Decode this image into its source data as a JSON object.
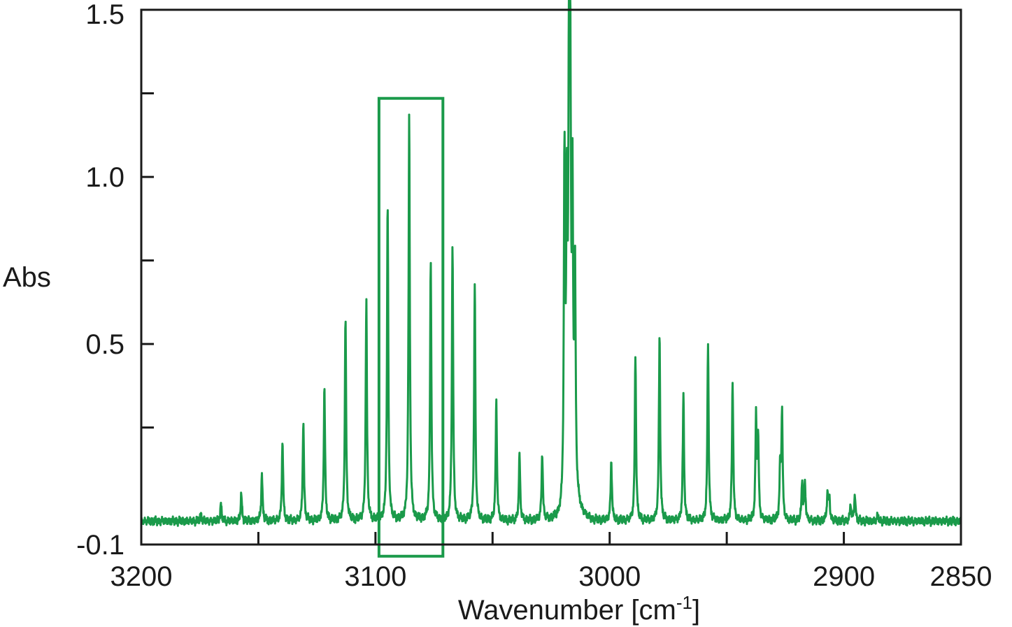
{
  "chart_data": {
    "type": "line",
    "title": "",
    "xlabel": "Wavenumber [cm",
    "xlabel_sup": "-1",
    "xlabel_close": "]",
    "ylabel": "Abs",
    "xlim": [
      3200,
      2850
    ],
    "ylim": [
      -0.1,
      1.5
    ],
    "x_reversed": true,
    "x_ticks": [
      3200,
      3150,
      3100,
      3050,
      3000,
      2950,
      2900,
      2850
    ],
    "x_tick_labels": [
      "3200",
      "",
      "3100",
      "",
      "3000",
      "",
      "2900",
      "2850"
    ],
    "y_ticks": [
      -0.1,
      0.25,
      0.5,
      0.75,
      1.0,
      1.25,
      1.5
    ],
    "y_tick_labels": [
      "-0.1",
      "",
      "0.5",
      "",
      "1.0",
      "",
      "1.5"
    ],
    "grid": false,
    "legend": "none",
    "line_color": "#1a9a4a",
    "baseline": -0.03,
    "series": [
      {
        "peaks": [
          {
            "x": 3174.5,
            "y": -0.01
          },
          {
            "x": 3166.0,
            "y": 0.02
          },
          {
            "x": 3157.3,
            "y": 0.05
          },
          {
            "x": 3148.5,
            "y": 0.11
          },
          {
            "x": 3139.7,
            "y": 0.21
          },
          {
            "x": 3130.8,
            "y": 0.27
          },
          {
            "x": 3121.8,
            "y": 0.37
          },
          {
            "x": 3112.8,
            "y": 0.58
          },
          {
            "x": 3103.9,
            "y": 0.63
          },
          {
            "x": 3094.8,
            "y": 0.92
          },
          {
            "x": 3085.6,
            "y": 1.19
          },
          {
            "x": 3076.4,
            "y": 0.75
          },
          {
            "x": 3067.1,
            "y": 0.8
          },
          {
            "x": 3057.6,
            "y": 0.67
          },
          {
            "x": 3048.4,
            "y": 0.33
          },
          {
            "x": 3038.5,
            "y": 0.17
          },
          {
            "x": 3028.8,
            "y": 0.17
          },
          {
            "x": 3019.3,
            "y": 1.0
          },
          {
            "x": 3018.3,
            "y": 0.8
          },
          {
            "x": 3017.4,
            "y": 1.12
          },
          {
            "x": 3016.8,
            "y": 1.15
          },
          {
            "x": 3015.9,
            "y": 0.76
          },
          {
            "x": 3014.8,
            "y": 0.62
          },
          {
            "x": 2999.3,
            "y": 0.15
          },
          {
            "x": 2989.0,
            "y": 0.47
          },
          {
            "x": 2978.7,
            "y": 0.53
          },
          {
            "x": 2968.5,
            "y": 0.35
          },
          {
            "x": 2958.0,
            "y": 0.5
          },
          {
            "x": 2947.5,
            "y": 0.39
          },
          {
            "x": 2937.5,
            "y": 0.27
          },
          {
            "x": 2936.6,
            "y": 0.21
          },
          {
            "x": 2927.2,
            "y": 0.12
          },
          {
            "x": 2926.4,
            "y": 0.29
          },
          {
            "x": 2917.8,
            "y": 0.09
          },
          {
            "x": 2916.6,
            "y": 0.08
          },
          {
            "x": 2907.0,
            "y": 0.05
          },
          {
            "x": 2906.2,
            "y": 0.04
          },
          {
            "x": 2897.1,
            "y": 0.02
          },
          {
            "x": 2895.3,
            "y": 0.05
          },
          {
            "x": 2885.5,
            "y": -0.01
          }
        ]
      }
    ],
    "annotations": [
      {
        "type": "rectangle",
        "x0": 3098.5,
        "x1": 3071.2,
        "y0": -0.135,
        "y1": 1.235,
        "color": "#1a9a4a"
      }
    ]
  }
}
